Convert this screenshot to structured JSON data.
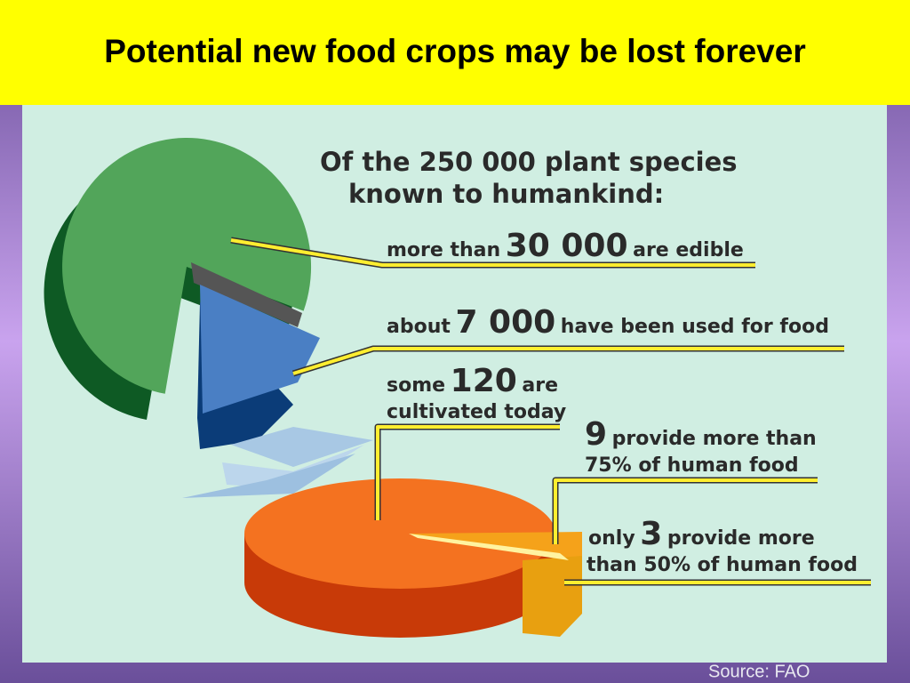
{
  "title": "Potential new food crops may be lost forever",
  "heading": {
    "lines": [
      "Of the 250 000 plant species",
      "known to humankind:"
    ]
  },
  "callouts": [
    {
      "before": "more than",
      "number": "30 000",
      "after": "are edible"
    },
    {
      "before": "about",
      "number": "7 000",
      "after": "have been used for food"
    },
    {
      "before": "some",
      "number": "120",
      "after": "are",
      "line2": "cultivated today"
    },
    {
      "number": "9",
      "after": "provide more than",
      "line2": "75% of human food"
    },
    {
      "before": "only",
      "number": "3",
      "after": "provide more",
      "line2": "than 50% of human food"
    }
  ],
  "source": "Source: FAO"
}
